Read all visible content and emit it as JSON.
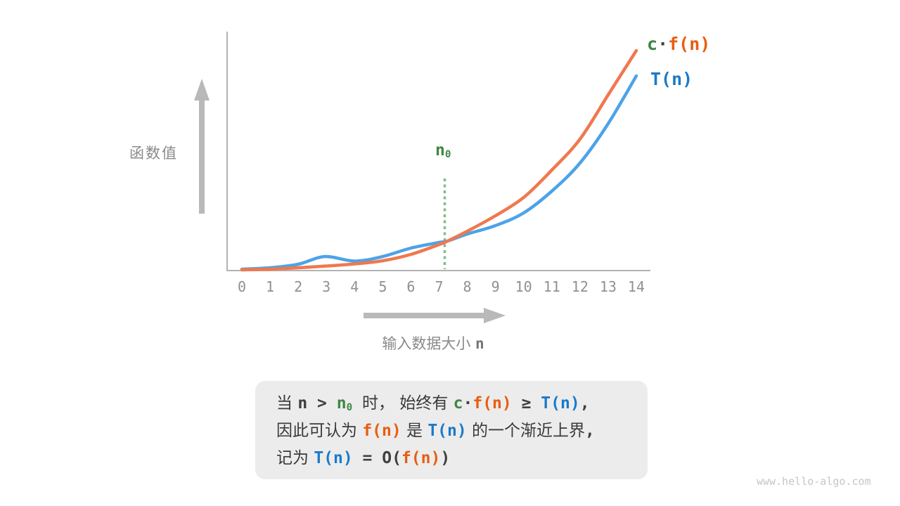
{
  "watermark": "www.hello-algo.com",
  "chart_data": {
    "type": "line",
    "title": "",
    "xlabel": "输入数据大小 n",
    "ylabel": "函数值",
    "x_ticks": [
      "0",
      "1",
      "2",
      "3",
      "4",
      "5",
      "6",
      "7",
      "8",
      "9",
      "10",
      "11",
      "12",
      "13",
      "14"
    ],
    "xlim": [
      0,
      14.5
    ],
    "ylim": [
      0,
      345
    ],
    "y_units": "arbitrary (value axis unlabeled)",
    "grid": false,
    "legend_position": "top-right",
    "xlabel_tokens": [
      {
        "t": "输入数据大小 ",
        "k": "axis"
      },
      {
        "t": "n",
        "k": "axis-n"
      }
    ],
    "n0_label_tokens": [
      {
        "t": "n",
        "k": "green"
      },
      {
        "t": "0",
        "k": "green",
        "sub": true
      }
    ],
    "annotations": [
      {
        "label": "n0",
        "x": 7.2,
        "style": "vertical-dotted-line",
        "color": "#85bb87",
        "label_color": "#3e8742"
      }
    ],
    "legend": [
      {
        "name": "c·f(n)",
        "tokens": [
          {
            "t": "c",
            "k": "green"
          },
          {
            "t": "·",
            "k": "dark"
          },
          {
            "t": "f(n)",
            "k": "orange"
          }
        ]
      },
      {
        "name": "T(n)",
        "tokens": [
          {
            "t": "T(n)",
            "k": "blue"
          }
        ]
      }
    ],
    "series": [
      {
        "id": "cfn",
        "name": "c·f(n)",
        "color": "#f0784e",
        "points": [
          [
            0,
            1
          ],
          [
            1,
            2
          ],
          [
            2,
            4
          ],
          [
            3,
            6.5
          ],
          [
            4,
            9.5
          ],
          [
            5,
            14
          ],
          [
            6,
            23
          ],
          [
            7,
            37
          ],
          [
            7.3,
            42
          ],
          [
            8,
            56
          ],
          [
            9,
            78
          ],
          [
            10,
            104
          ],
          [
            11,
            143
          ],
          [
            12,
            187
          ],
          [
            13,
            250
          ],
          [
            14,
            313
          ]
        ]
      },
      {
        "id": "tn",
        "name": "T(n)",
        "color": "#4da3e8",
        "points": [
          [
            0,
            2
          ],
          [
            1,
            4
          ],
          [
            2,
            9
          ],
          [
            2.95,
            20
          ],
          [
            4,
            13.5
          ],
          [
            5,
            20
          ],
          [
            6,
            32
          ],
          [
            7,
            40
          ],
          [
            7.3,
            42
          ],
          [
            8,
            52
          ],
          [
            9,
            64
          ],
          [
            10,
            82
          ],
          [
            11,
            113
          ],
          [
            12,
            153
          ],
          [
            13,
            209
          ],
          [
            14,
            277
          ]
        ]
      }
    ]
  },
  "note_box": {
    "lines": [
      {
        "tokens": [
          {
            "t": "当 ",
            "k": "cn"
          },
          {
            "t": "n > ",
            "k": "dark"
          },
          {
            "t": "n",
            "k": "green"
          },
          {
            "t": "0",
            "k": "green",
            "sub": true
          },
          {
            "t": " ",
            "k": "dark"
          },
          {
            "t": "时， ",
            "k": "cn"
          },
          {
            "t": "始终有 ",
            "k": "cn"
          },
          {
            "t": "c",
            "k": "green"
          },
          {
            "t": "·",
            "k": "dark"
          },
          {
            "t": "f(n)",
            "k": "orange"
          },
          {
            "t": " ≥ ",
            "k": "dark"
          },
          {
            "t": "T(n)",
            "k": "blue"
          },
          {
            "t": ",",
            "k": "dark"
          }
        ]
      },
      {
        "tokens": [
          {
            "t": "因此可认为 ",
            "k": "cn"
          },
          {
            "t": "f(n)",
            "k": "orange"
          },
          {
            "t": " 是 ",
            "k": "cn"
          },
          {
            "t": "T(n)",
            "k": "blue"
          },
          {
            "t": " 的一个渐近上界",
            "k": "cn"
          },
          {
            "t": ",",
            "k": "dark"
          }
        ]
      },
      {
        "tokens": [
          {
            "t": "记为 ",
            "k": "cn"
          },
          {
            "t": "T(n)",
            "k": "blue"
          },
          {
            "t": " = ",
            "k": "dark"
          },
          {
            "t": "O(",
            "k": "dark"
          },
          {
            "t": "f(n)",
            "k": "orange"
          },
          {
            "t": ")",
            "k": "dark"
          }
        ]
      }
    ]
  }
}
